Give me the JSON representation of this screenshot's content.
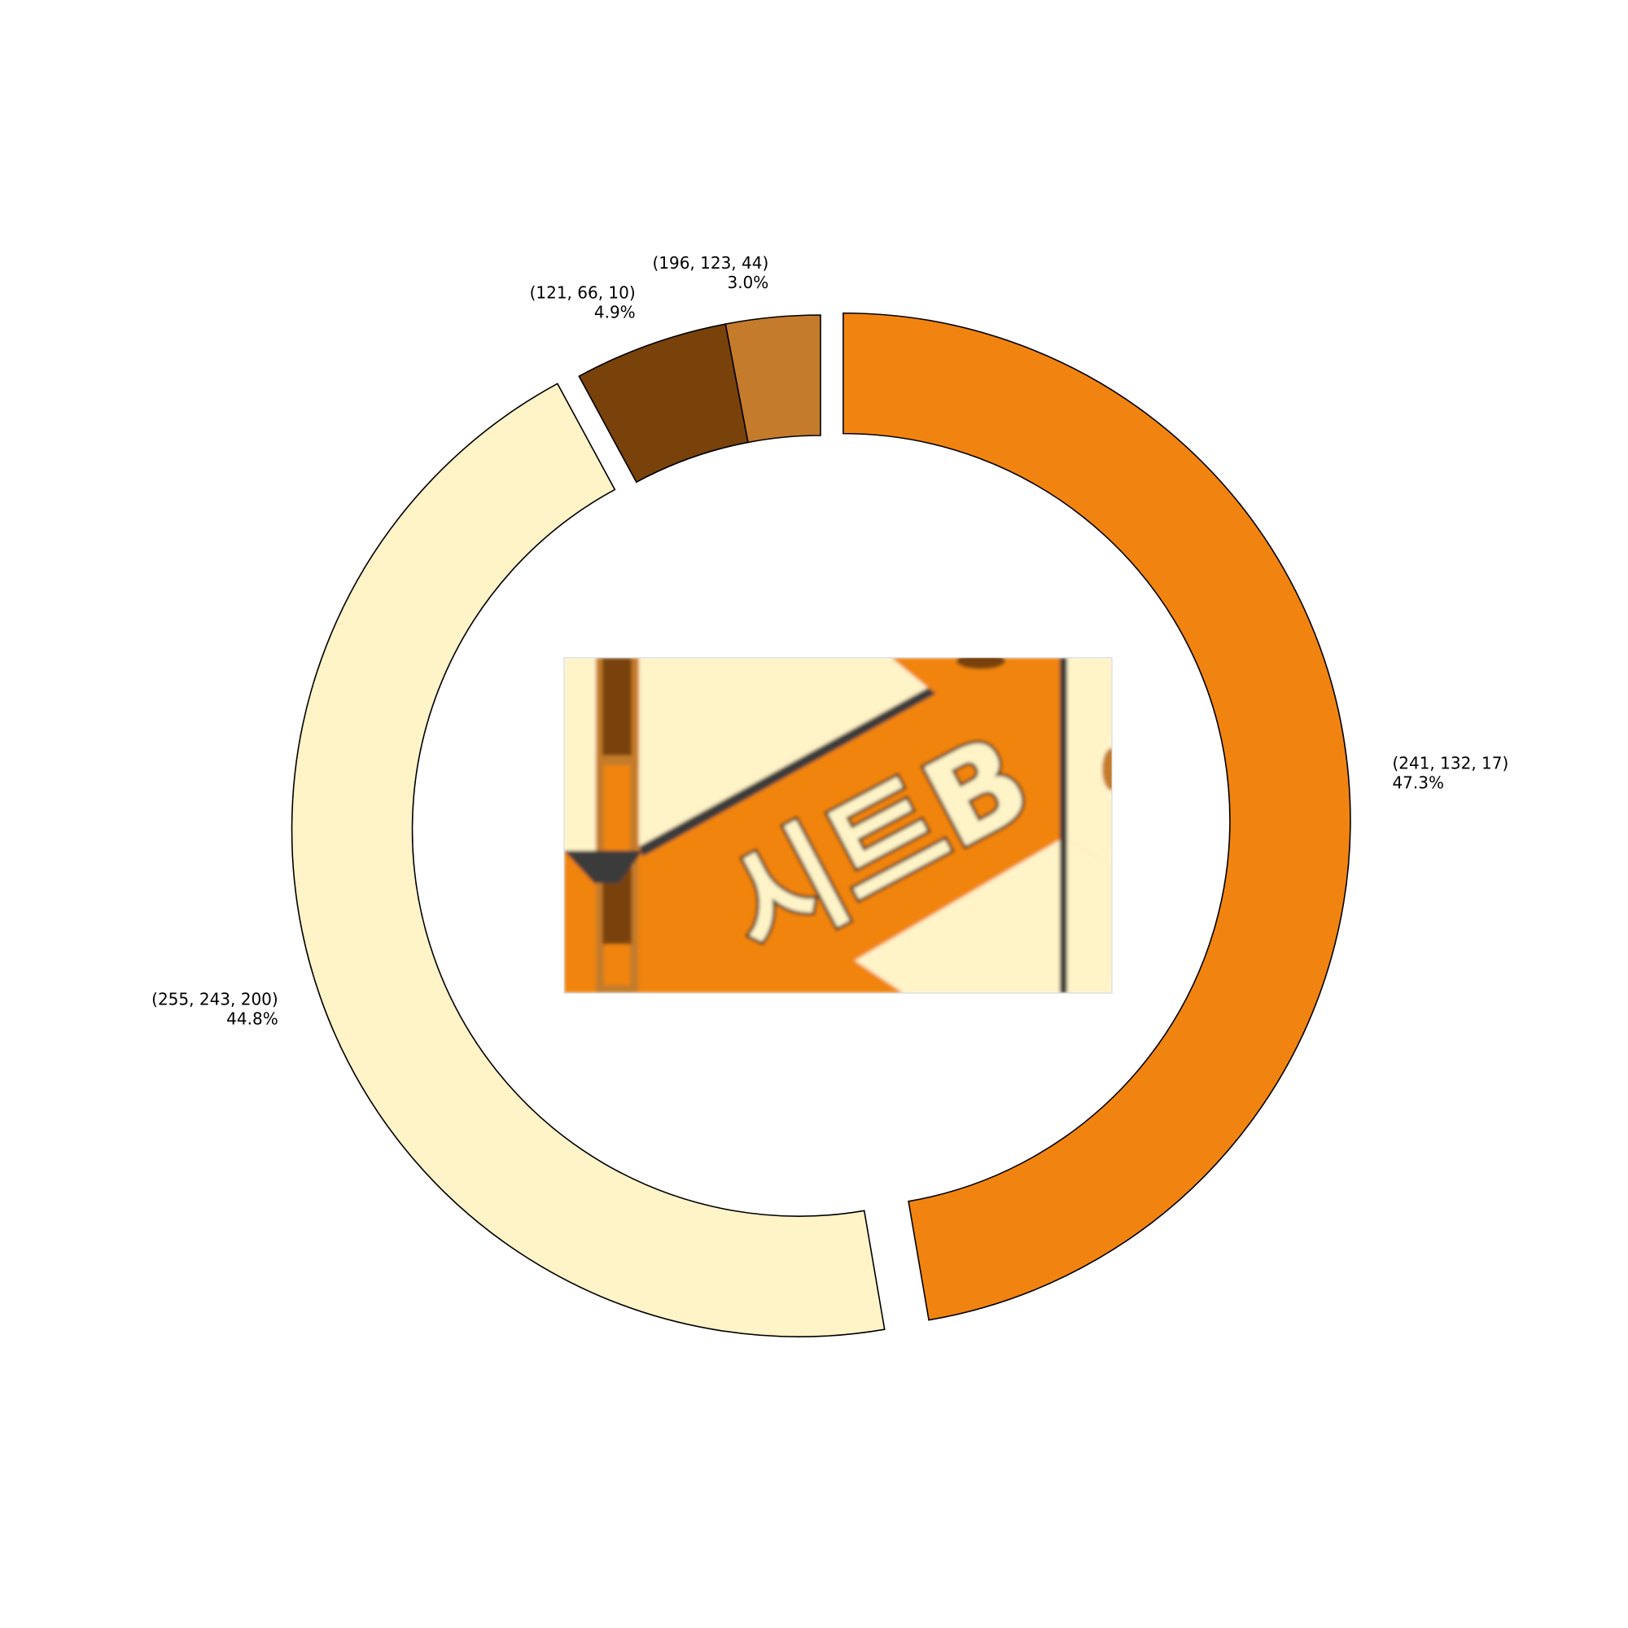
{
  "chart_data": {
    "type": "pie",
    "variant": "donut",
    "start_angle_deg": 90,
    "direction": "clockwise",
    "slices": [
      {
        "label": "(241, 132, 17)",
        "percent_label": "47.3%",
        "value": 47.3,
        "color": "#f18411",
        "exploded": true
      },
      {
        "label": "(255, 243, 200)",
        "percent_label": "44.8%",
        "value": 44.8,
        "color": "#fff3c8",
        "exploded": true
      },
      {
        "label": "(121, 66, 10)",
        "percent_label": "4.9%",
        "value": 4.9,
        "color": "#79420a",
        "exploded": false
      },
      {
        "label": "(196, 123, 44)",
        "percent_label": "3.0%",
        "value": 3.0,
        "color": "#c47b2c",
        "exploded": false
      }
    ],
    "center_image": {
      "text": "시트B",
      "colors": {
        "orange": "#f18411",
        "cream": "#fff3c8",
        "dark": "#79420a",
        "mid": "#c47b2c"
      }
    }
  }
}
